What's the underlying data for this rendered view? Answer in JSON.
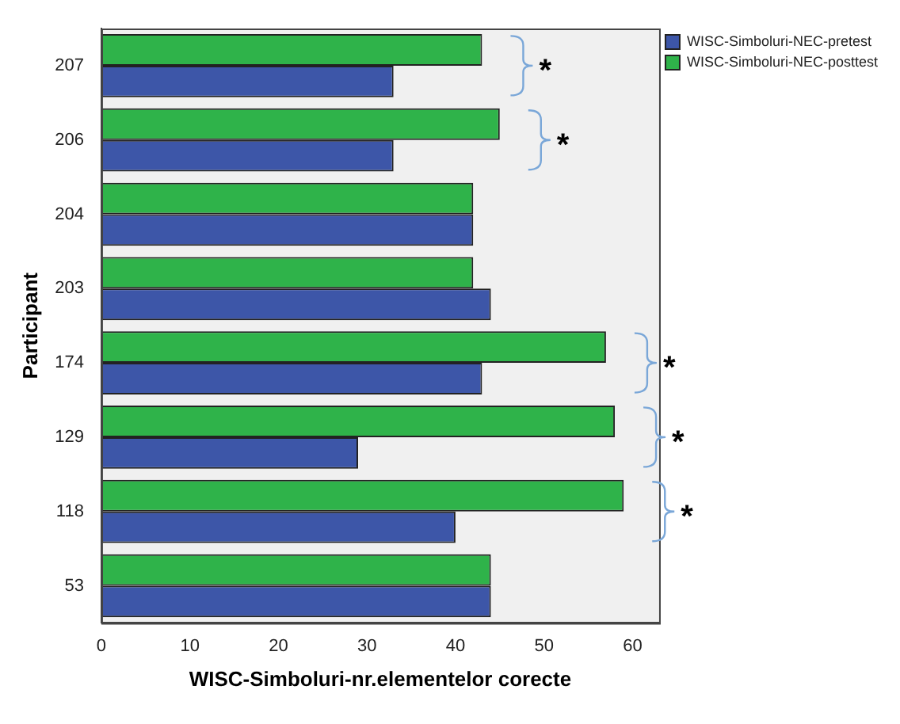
{
  "chart_data": {
    "type": "bar",
    "orientation": "horizontal",
    "xlabel": "WISC-Simboluri-nr.elementelor corecte",
    "ylabel": "Participant",
    "categories": [
      "207",
      "206",
      "204",
      "203",
      "174",
      "129",
      "118",
      "53"
    ],
    "series": [
      {
        "name": "WISC-Simboluri-NEC-pretest",
        "color": "#3d56a8",
        "values": [
          33,
          33,
          42,
          44,
          43,
          29,
          40,
          44
        ]
      },
      {
        "name": "WISC-Simboluri-NEC-posttest",
        "color": "#2fb34a",
        "values": [
          43,
          45,
          42,
          42,
          57,
          58,
          59,
          44
        ]
      }
    ],
    "xlim": [
      0,
      63
    ],
    "xticks": [
      0,
      10,
      20,
      30,
      40,
      50,
      60
    ],
    "grid": false,
    "legend": "top right",
    "annotations": [
      {
        "text": "*",
        "x": 43,
        "y": "207"
      },
      {
        "text": "*",
        "x": 45,
        "y": "206"
      },
      {
        "text": "*",
        "x": 57,
        "y": "174"
      },
      {
        "text": "*",
        "x": 58,
        "y": "129"
      },
      {
        "text": "*",
        "x": 59,
        "y": "118"
      }
    ]
  }
}
